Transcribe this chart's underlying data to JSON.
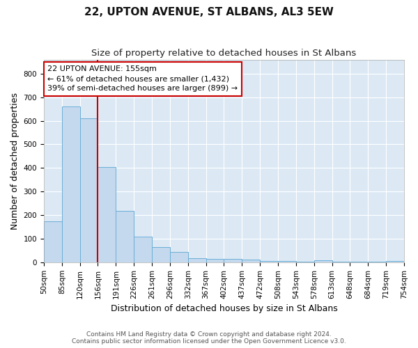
{
  "title": "22, UPTON AVENUE, ST ALBANS, AL3 5EW",
  "subtitle": "Size of property relative to detached houses in St Albans",
  "xlabel": "Distribution of detached houses by size in St Albans",
  "ylabel": "Number of detached properties",
  "footer_line1": "Contains HM Land Registry data © Crown copyright and database right 2024.",
  "footer_line2": "Contains public sector information licensed under the Open Government Licence v3.0.",
  "bin_labels": [
    "50sqm",
    "85sqm",
    "120sqm",
    "156sqm",
    "191sqm",
    "226sqm",
    "261sqm",
    "296sqm",
    "332sqm",
    "367sqm",
    "402sqm",
    "437sqm",
    "472sqm",
    "508sqm",
    "543sqm",
    "578sqm",
    "613sqm",
    "648sqm",
    "684sqm",
    "719sqm",
    "754sqm"
  ],
  "bar_values": [
    175,
    660,
    612,
    403,
    218,
    110,
    63,
    43,
    17,
    15,
    13,
    12,
    6,
    6,
    1,
    8,
    1,
    1,
    1,
    5
  ],
  "bar_color": "#c5d9ee",
  "bar_edge_color": "#6aaed6",
  "vline_x": 3,
  "vline_color": "#cc0000",
  "annotation_text": "22 UPTON AVENUE: 155sqm\n← 61% of detached houses are smaller (1,432)\n39% of semi-detached houses are larger (899) →",
  "annotation_box_color": "#cc0000",
  "ylim": [
    0,
    860
  ],
  "yticks": [
    0,
    100,
    200,
    300,
    400,
    500,
    600,
    700,
    800
  ],
  "plot_bg_color": "#dce9f5",
  "figure_bg_color": "#ffffff",
  "grid_color": "#ffffff",
  "title_fontsize": 11,
  "subtitle_fontsize": 9.5,
  "ylabel_fontsize": 9,
  "xlabel_fontsize": 9,
  "tick_fontsize": 7.5,
  "annotation_fontsize": 8,
  "footer_fontsize": 6.5
}
